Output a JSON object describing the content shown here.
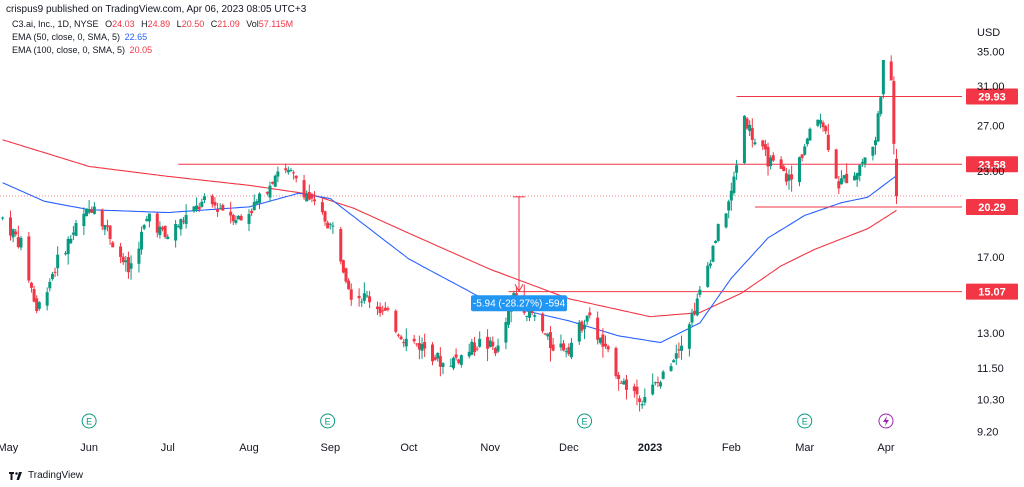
{
  "header": {
    "published": "crispus9 published on TradingView.com, Apr 06, 2023 08:05 UTC+3"
  },
  "legend": {
    "symbol": "C3.ai, Inc., 1D, NYSE",
    "ohlc": [
      {
        "label": "O",
        "value": "24.03"
      },
      {
        "label": "H",
        "value": "24.89"
      },
      {
        "label": "L",
        "value": "20.50"
      },
      {
        "label": "C",
        "value": "21.09"
      },
      {
        "label": "Vol",
        "value": "57.115M"
      }
    ],
    "ema50_label": "EMA (50, close, 0, SMA, 5)",
    "ema50_value": "22.65",
    "ema100_label": "EMA (100, close, 0, SMA, 5)",
    "ema100_value": "20.05"
  },
  "footer": {
    "brand": "TradingView"
  },
  "colors": {
    "up": "#089981",
    "down": "#f23645",
    "ema50": "#2962ff",
    "ema100": "#f23645",
    "measure": "#2196f3",
    "earnings": "#089981"
  },
  "chart_data": {
    "type": "candlestick",
    "currency": "USD",
    "y_axis_ticks": [
      "35.00",
      "31.00",
      "27.00",
      "23.00",
      "17.00",
      "13.00",
      "11.50",
      "10.30",
      "9.20"
    ],
    "ylim": [
      9.2,
      36.5
    ],
    "y_scale": "log",
    "x_axis_labels": [
      "May",
      "Jun",
      "Jul",
      "Aug",
      "Sep",
      "Oct",
      "Nov",
      "Dec",
      "2023",
      "Feb",
      "Mar",
      "Apr"
    ],
    "x_dates": [
      "2022-05-01",
      "2022-06-01",
      "2022-07-01",
      "2022-08-01",
      "2022-09-01",
      "2022-10-01",
      "2022-11-01",
      "2022-12-01",
      "2023-01-01",
      "2023-02-01",
      "2023-03-01",
      "2023-04-01"
    ],
    "xlim": [
      "2022-04-28",
      "2023-04-30"
    ],
    "horizontal_levels": [
      {
        "price": 29.93,
        "label": "29.93",
        "from": "2023-02-03"
      },
      {
        "price": 23.58,
        "label": "23.58",
        "from": "2022-07-05"
      },
      {
        "price": 20.29,
        "label": "20.29",
        "from": "2023-02-10"
      },
      {
        "price": 15.07,
        "label": "15.07",
        "from": "2022-11-08"
      }
    ],
    "last_price_line": 21.09,
    "measure": {
      "date": "2022-11-12",
      "from": 21.03,
      "to": 15.09,
      "label": "-5.94 (-28.27%) -594"
    },
    "earnings_dates": [
      "2022-06-01",
      "2022-08-31",
      "2022-12-07",
      "2023-03-01"
    ],
    "dividend_date": "2023-04-01",
    "ohlc_anchors": [
      [
        "2022-04-29",
        19.5
      ],
      [
        "2022-05-06",
        17.8
      ],
      [
        "2022-05-12",
        14.1
      ],
      [
        "2022-05-20",
        16.8
      ],
      [
        "2022-05-27",
        18.9
      ],
      [
        "2022-06-03",
        20.6
      ],
      [
        "2022-06-10",
        18.0
      ],
      [
        "2022-06-16",
        16.2
      ],
      [
        "2022-06-24",
        19.8
      ],
      [
        "2022-06-30",
        18.2
      ],
      [
        "2022-07-08",
        19.6
      ],
      [
        "2022-07-15",
        20.6
      ],
      [
        "2022-07-22",
        20.2
      ],
      [
        "2022-07-29",
        19.4
      ],
      [
        "2022-08-05",
        20.8
      ],
      [
        "2022-08-12",
        23.2
      ],
      [
        "2022-08-19",
        22.5
      ],
      [
        "2022-08-26",
        20.3
      ],
      [
        "2022-09-02",
        18.8
      ],
      [
        "2022-09-09",
        15.0
      ],
      [
        "2022-09-16",
        14.7
      ],
      [
        "2022-09-23",
        13.8
      ],
      [
        "2022-09-30",
        12.7
      ],
      [
        "2022-10-07",
        12.4
      ],
      [
        "2022-10-14",
        11.7
      ],
      [
        "2022-10-21",
        12.0
      ],
      [
        "2022-10-28",
        12.6
      ],
      [
        "2022-11-04",
        12.3
      ],
      [
        "2022-11-10",
        14.9
      ],
      [
        "2022-11-17",
        13.9
      ],
      [
        "2022-11-24",
        12.5
      ],
      [
        "2022-12-01",
        12.4
      ],
      [
        "2022-12-08",
        13.9
      ],
      [
        "2022-12-15",
        12.2
      ],
      [
        "2022-12-22",
        10.9
      ],
      [
        "2022-12-29",
        10.4
      ],
      [
        "2023-01-05",
        11.0
      ],
      [
        "2023-01-12",
        12.5
      ],
      [
        "2023-01-19",
        14.5
      ],
      [
        "2023-01-26",
        18.2
      ],
      [
        "2023-02-01",
        21.2
      ],
      [
        "2023-02-06",
        28.0
      ],
      [
        "2023-02-10",
        25.5
      ],
      [
        "2023-02-17",
        23.4
      ],
      [
        "2023-02-24",
        22.3
      ],
      [
        "2023-03-01",
        25.2
      ],
      [
        "2023-03-07",
        28.2
      ],
      [
        "2023-03-14",
        22.0
      ],
      [
        "2023-03-21",
        23.2
      ],
      [
        "2023-03-28",
        25.5
      ],
      [
        "2023-03-31",
        33.5
      ],
      [
        "2023-04-03",
        31.0
      ],
      [
        "2023-04-05",
        21.1
      ]
    ],
    "ema50_anchors": [
      [
        "2022-04-29",
        22.1
      ],
      [
        "2022-05-15",
        20.7
      ],
      [
        "2022-06-01",
        20.1
      ],
      [
        "2022-07-01",
        19.9
      ],
      [
        "2022-08-01",
        20.3
      ],
      [
        "2022-08-20",
        21.3
      ],
      [
        "2022-09-01",
        20.9
      ],
      [
        "2022-10-01",
        16.9
      ],
      [
        "2022-11-01",
        14.5
      ],
      [
        "2022-12-01",
        13.6
      ],
      [
        "2022-12-20",
        12.9
      ],
      [
        "2023-01-05",
        12.6
      ],
      [
        "2023-01-20",
        13.5
      ],
      [
        "2023-02-01",
        15.8
      ],
      [
        "2023-02-15",
        18.2
      ],
      [
        "2023-03-01",
        19.7
      ],
      [
        "2023-03-15",
        20.6
      ],
      [
        "2023-03-25",
        21.0
      ],
      [
        "2023-04-05",
        22.65
      ]
    ],
    "ema100_anchors": [
      [
        "2022-04-29",
        25.7
      ],
      [
        "2022-06-01",
        23.4
      ],
      [
        "2022-07-01",
        22.6
      ],
      [
        "2022-08-01",
        21.9
      ],
      [
        "2022-08-25",
        21.2
      ],
      [
        "2022-09-10",
        20.2
      ],
      [
        "2022-10-01",
        18.5
      ],
      [
        "2022-11-01",
        16.3
      ],
      [
        "2022-12-01",
        14.7
      ],
      [
        "2023-01-01",
        13.8
      ],
      [
        "2023-01-20",
        14.0
      ],
      [
        "2023-02-05",
        15.0
      ],
      [
        "2023-02-20",
        16.5
      ],
      [
        "2023-03-05",
        17.5
      ],
      [
        "2023-03-25",
        18.8
      ],
      [
        "2023-04-05",
        20.05
      ]
    ]
  }
}
